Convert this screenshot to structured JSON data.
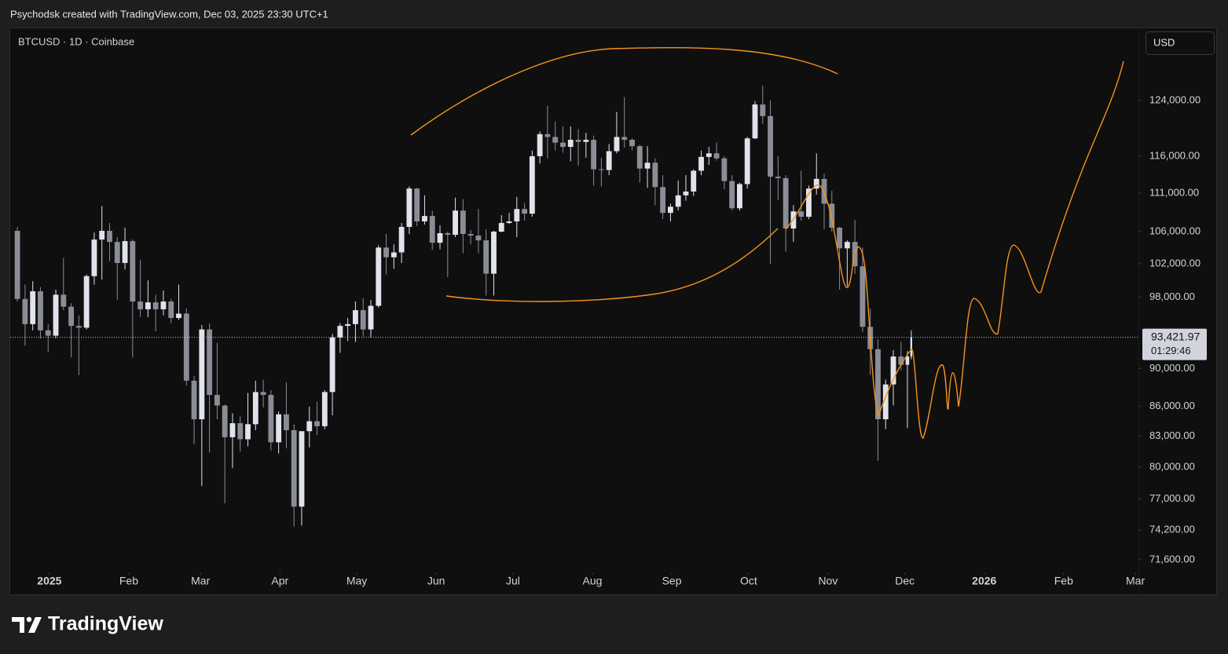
{
  "header": {
    "attribution": "Psychodsk created with TradingView.com, Dec 03, 2025 23:30 UTC+1"
  },
  "chart_data": {
    "type": "candlestick",
    "symbol": "BTCUSD · 1D · Coinbase",
    "currency": "USD",
    "log_scale": true,
    "grid": false,
    "up_color": "#e0e3eb",
    "down_color": "#8a8d96",
    "x": [
      0,
      3,
      6,
      9,
      12,
      15,
      18,
      21,
      24,
      27,
      30,
      33,
      36,
      39,
      42,
      45,
      48,
      51,
      54,
      57,
      60,
      63,
      66,
      69,
      72,
      75,
      78,
      81,
      84,
      87,
      90,
      93,
      96,
      99,
      102,
      105,
      108,
      111,
      114,
      117,
      120,
      123,
      126,
      129,
      132,
      135,
      138,
      141,
      144,
      147,
      150,
      153,
      156,
      159,
      162,
      165,
      168,
      171,
      174,
      177,
      180,
      183,
      186,
      189,
      192,
      195,
      198,
      201,
      204,
      207,
      210,
      213,
      216,
      219,
      222,
      225,
      228,
      231,
      234,
      237,
      240,
      243,
      246,
      249,
      252,
      255,
      258,
      261,
      264,
      267,
      270,
      273,
      276,
      279,
      282,
      285,
      288,
      291,
      294,
      297,
      300,
      303,
      306,
      309,
      312,
      315,
      318,
      321,
      324,
      327,
      330,
      333,
      336,
      339,
      342,
      345,
      348,
      350
    ],
    "open": [
      106100,
      97800,
      94900,
      98700,
      94200,
      93600,
      98300,
      96900,
      94700,
      94500,
      100500,
      105000,
      106100,
      104700,
      102100,
      104800,
      97500,
      96600,
      97400,
      96600,
      97500,
      95600,
      96100,
      88700,
      84700,
      94300,
      87200,
      86100,
      82900,
      84300,
      82700,
      84200,
      87500,
      87200,
      82400,
      85200,
      83600,
      76300,
      83500,
      84500,
      84000,
      87500,
      93400,
      94700,
      94900,
      96500,
      94300,
      97000,
      104000,
      102800,
      103400,
      106600,
      111600,
      107300,
      108000,
      104600,
      105800,
      105600,
      108700,
      105700,
      105500,
      104900,
      100800,
      106000,
      107100,
      107300,
      108900,
      108300,
      116000,
      119100,
      118700,
      117900,
      117300,
      118300,
      118000,
      118300,
      114200,
      114100,
      116700,
      118700,
      118300,
      117400,
      114300,
      115100,
      111800,
      108400,
      109200,
      110700,
      111200,
      114000,
      115900,
      116400,
      115700,
      112600,
      109000,
      112200,
      118500,
      123400,
      121700,
      113200,
      113000,
      106400,
      108600,
      107900,
      111600,
      112900,
      109600,
      106500,
      103900,
      104700,
      101700,
      94600,
      92100,
      84700,
      88300,
      91300,
      90400,
      91300
    ],
    "high": [
      106600,
      99500,
      99900,
      99200,
      94900,
      98900,
      102700,
      97300,
      95900,
      100700,
      105900,
      109300,
      107100,
      105300,
      106500,
      105000,
      102500,
      100000,
      98300,
      98800,
      97800,
      99500,
      96700,
      89200,
      94800,
      95000,
      92800,
      86200,
      85300,
      85000,
      87400,
      88700,
      88800,
      87700,
      85500,
      88500,
      84200,
      83500,
      86000,
      86500,
      87700,
      93800,
      95000,
      95600,
      97500,
      97900,
      97700,
      104300,
      105700,
      104400,
      107100,
      111900,
      111700,
      110700,
      108700,
      106800,
      106000,
      110400,
      110200,
      106200,
      108900,
      106300,
      106100,
      108100,
      108400,
      110500,
      109700,
      116800,
      119500,
      123200,
      120900,
      120200,
      120200,
      119800,
      119300,
      118900,
      115800,
      117700,
      122300,
      124500,
      118500,
      117600,
      117400,
      115700,
      113400,
      109600,
      112700,
      113400,
      114200,
      116800,
      117300,
      117900,
      116000,
      113400,
      112400,
      118700,
      123900,
      126200,
      124000,
      116000,
      113400,
      109400,
      114000,
      112000,
      116400,
      113600,
      111300,
      106600,
      104900,
      107500,
      104000,
      96700,
      93200,
      88800,
      92000,
      92900,
      91900,
      94200
    ],
    "low": [
      97500,
      92500,
      94200,
      93300,
      91800,
      93300,
      96500,
      91200,
      89300,
      94300,
      99500,
      100100,
      102300,
      97700,
      101300,
      91200,
      95700,
      95700,
      94100,
      95900,
      95000,
      95400,
      88200,
      82200,
      78200,
      81400,
      84700,
      76600,
      79900,
      81500,
      82000,
      83600,
      85900,
      81600,
      81300,
      81800,
      74500,
      74600,
      81900,
      83100,
      83700,
      85100,
      91700,
      93000,
      92900,
      93500,
      93400,
      96800,
      100700,
      101400,
      102100,
      105700,
      106700,
      106900,
      103700,
      103800,
      100400,
      105300,
      103300,
      104400,
      103300,
      98200,
      98200,
      105900,
      107000,
      105300,
      107400,
      107900,
      115000,
      115700,
      116800,
      116500,
      115300,
      114700,
      115800,
      112000,
      111900,
      113400,
      116400,
      117200,
      116800,
      112400,
      111700,
      109400,
      107600,
      107300,
      108700,
      110000,
      110600,
      113400,
      114800,
      115400,
      111500,
      108700,
      108700,
      111600,
      118400,
      120600,
      102000,
      110100,
      103500,
      104700,
      107400,
      107600,
      110800,
      106300,
      106000,
      98900,
      99300,
      100800,
      94000,
      89300,
      80600,
      83700,
      86100,
      89800,
      83800,
      91000
    ],
    "close": [
      97800,
      94900,
      98700,
      94200,
      93600,
      98300,
      96900,
      94700,
      94500,
      100500,
      105000,
      106100,
      104700,
      102100,
      104800,
      97500,
      96600,
      97400,
      96600,
      97500,
      95600,
      96100,
      88700,
      84700,
      94300,
      87200,
      86100,
      82900,
      84300,
      82700,
      84200,
      87500,
      87200,
      82400,
      85200,
      83600,
      76300,
      83500,
      84500,
      84000,
      87500,
      93400,
      94700,
      94900,
      96500,
      94300,
      97000,
      104000,
      102800,
      103400,
      106600,
      111600,
      107300,
      108000,
      104600,
      105800,
      105600,
      108700,
      105700,
      105500,
      104900,
      100800,
      106000,
      107100,
      107300,
      108900,
      108300,
      116000,
      119100,
      118700,
      117900,
      117300,
      118300,
      118000,
      118300,
      114200,
      114100,
      116700,
      118700,
      118300,
      117400,
      114300,
      115100,
      111800,
      108400,
      109200,
      110700,
      111200,
      114000,
      115900,
      116400,
      115700,
      112600,
      109000,
      112200,
      118500,
      123400,
      121700,
      113200,
      113000,
      106400,
      108600,
      107900,
      111600,
      112900,
      109600,
      106500,
      103900,
      104700,
      101700,
      94600,
      92100,
      84700,
      88300,
      91300,
      90400,
      91300,
      93421.97
    ],
    "xlim": [
      -1.3,
      439.2
    ],
    "xticks": [
      {
        "value": 14,
        "label": "2025"
      },
      {
        "value": 45,
        "label": "Feb"
      },
      {
        "value": 73,
        "label": "Mar"
      },
      {
        "value": 104,
        "label": "Apr"
      },
      {
        "value": 134,
        "label": "May"
      },
      {
        "value": 165,
        "label": "Jun"
      },
      {
        "value": 195,
        "label": "Jul"
      },
      {
        "value": 226,
        "label": "Aug"
      },
      {
        "value": 257,
        "label": "Sep"
      },
      {
        "value": 287,
        "label": "Oct"
      },
      {
        "value": 318,
        "label": "Nov"
      },
      {
        "value": 348,
        "label": "Dec"
      },
      {
        "value": 379,
        "label": "2026"
      },
      {
        "value": 410,
        "label": "Feb"
      },
      {
        "value": 438,
        "label": "Mar"
      }
    ],
    "ylim": [
      70600,
      135300
    ],
    "yticks": [
      {
        "value": 71600,
        "label": "71,600.00"
      },
      {
        "value": 74200,
        "label": "74,200.00"
      },
      {
        "value": 77000,
        "label": "77,000.00"
      },
      {
        "value": 80000,
        "label": "80,000.00"
      },
      {
        "value": 83000,
        "label": "83,000.00"
      },
      {
        "value": 86000,
        "label": "86,000.00"
      },
      {
        "value": 90000,
        "label": "90,000.00"
      },
      {
        "value": 98000,
        "label": "98,000.00"
      },
      {
        "value": 102000,
        "label": "102,000.00"
      },
      {
        "value": 106000,
        "label": "106,000.00"
      },
      {
        "value": 111000,
        "label": "111,000.00"
      },
      {
        "value": 116000,
        "label": "116,000.00"
      },
      {
        "value": 124000,
        "label": "124,000.00"
      }
    ],
    "last_price": {
      "value": 93421.97,
      "label": "93,421.97"
    },
    "countdown": "01:29:46"
  },
  "footer": {
    "logo": "TradingView"
  }
}
